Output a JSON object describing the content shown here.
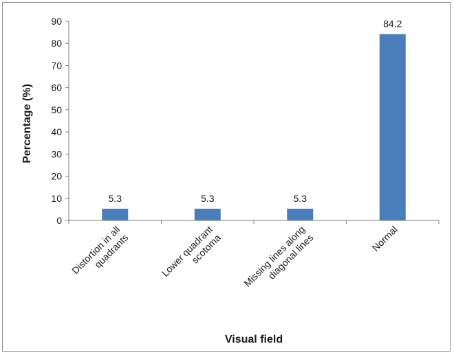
{
  "chart_data": {
    "type": "bar",
    "title": "",
    "xlabel": "Visual field",
    "ylabel": "Percentage (%)",
    "categories": [
      [
        "Distortion in all",
        "quadrants"
      ],
      [
        "Lower quadrant",
        "scotoma"
      ],
      [
        "Missing lines along",
        "diagonal lines"
      ],
      [
        "Normal"
      ]
    ],
    "values": [
      5.3,
      5.3,
      5.3,
      84.2
    ],
    "data_labels": [
      "5.3",
      "5.3",
      "5.3",
      "84.2"
    ],
    "ylim": [
      0,
      90
    ],
    "yticks": [
      0,
      10,
      20,
      30,
      40,
      50,
      60,
      70,
      80,
      90
    ],
    "bar_color": "#4a7ebb",
    "grid": false,
    "legend": "none"
  }
}
